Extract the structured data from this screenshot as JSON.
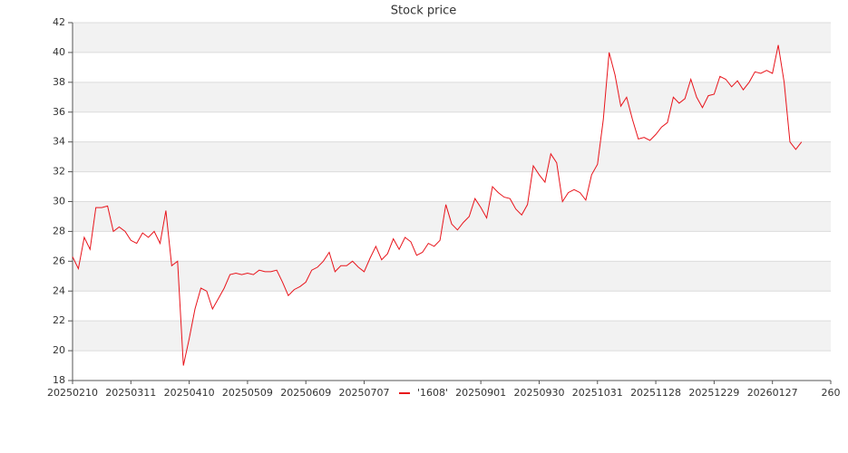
{
  "chart_data": {
    "type": "line",
    "title": "Stock price",
    "series": [
      {
        "name": "'1608'",
        "color": "#e8141b",
        "values": [
          26.3,
          25.5,
          27.6,
          26.8,
          29.6,
          29.6,
          29.7,
          28.0,
          28.3,
          28.0,
          27.4,
          27.2,
          27.9,
          27.6,
          28.0,
          27.2,
          29.4,
          25.7,
          26.0,
          19.0,
          20.8,
          22.8,
          24.2,
          24.0,
          22.8,
          23.5,
          24.2,
          25.1,
          25.2,
          25.1,
          25.2,
          25.1,
          25.4,
          25.3,
          25.3,
          25.4,
          24.6,
          23.7,
          24.1,
          24.3,
          24.6,
          25.4,
          25.6,
          26.0,
          26.6,
          25.3,
          25.7,
          25.7,
          26.0,
          25.6,
          25.3,
          26.2,
          27.0,
          26.1,
          26.5,
          27.5,
          26.8,
          27.6,
          27.3,
          26.4,
          26.6,
          27.2,
          27.0,
          27.4,
          29.8,
          28.5,
          28.1,
          28.6,
          29.0,
          30.2,
          29.6,
          28.9,
          31.0,
          30.6,
          30.3,
          30.2,
          29.5,
          29.1,
          29.8,
          32.4,
          31.8,
          31.3,
          33.2,
          32.6,
          30.0,
          30.6,
          30.8,
          30.6,
          30.1,
          31.8,
          32.5,
          35.5,
          40.0,
          38.5,
          36.4,
          37.0,
          35.5,
          34.2,
          34.3,
          34.1,
          34.5,
          35.0,
          35.3,
          37.0,
          36.6,
          36.9,
          38.2,
          37.0,
          36.3,
          37.1,
          37.2,
          38.4,
          38.2,
          37.7,
          38.1,
          37.5,
          38.0,
          38.7,
          38.6,
          38.8,
          38.6,
          40.5,
          38.0,
          34.0,
          33.5,
          34.0
        ]
      }
    ],
    "xlim": [
      0,
      130
    ],
    "xticks": [
      {
        "value": 0,
        "label": "20250210"
      },
      {
        "value": 10,
        "label": "20250311"
      },
      {
        "value": 20,
        "label": "20250410"
      },
      {
        "value": 30,
        "label": "20250509"
      },
      {
        "value": 40,
        "label": "20250609"
      },
      {
        "value": 50,
        "label": "20250707"
      },
      {
        "value": 70,
        "label": "20250901"
      },
      {
        "value": 80,
        "label": "20250930"
      },
      {
        "value": 90,
        "label": "20251031"
      },
      {
        "value": 100,
        "label": "20251128"
      },
      {
        "value": 110,
        "label": "20251229"
      },
      {
        "value": 120,
        "label": "20260127"
      },
      {
        "value": 130,
        "label": "260"
      }
    ],
    "ylim": [
      18,
      42
    ],
    "yticks": [
      18,
      20,
      22,
      24,
      26,
      28,
      30,
      32,
      34,
      36,
      38,
      40,
      42
    ],
    "grid": true,
    "band_color": "#f2f2f2",
    "legend": "bottom"
  }
}
